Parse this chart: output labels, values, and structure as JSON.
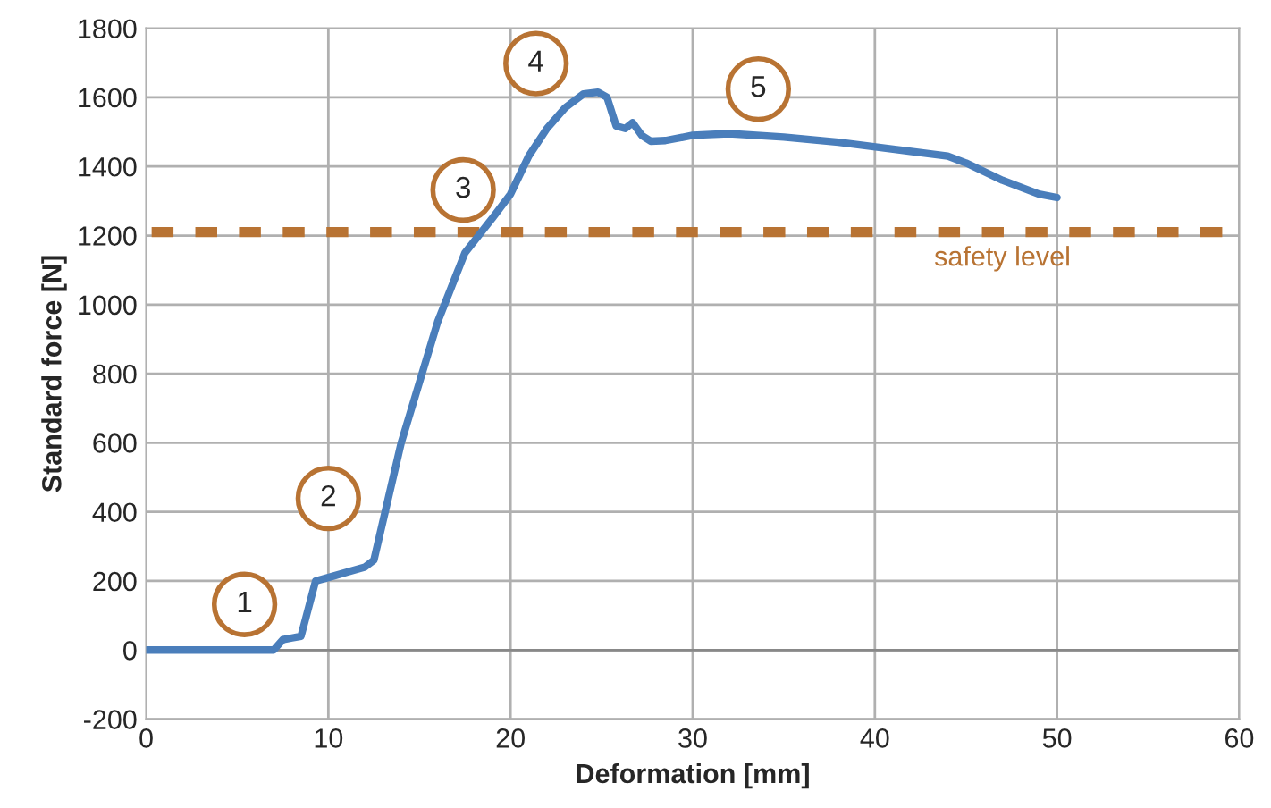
{
  "chart_data": {
    "type": "line",
    "xlabel": "Deformation [mm]",
    "ylabel": "Standard force [N]",
    "series": [
      {
        "color": "#4a7ebb",
        "x": [
          0,
          7,
          7.5,
          8,
          8.5,
          9.3,
          10,
          11,
          12,
          12.5,
          14,
          16,
          17.5,
          19,
          20,
          21,
          22,
          23,
          24,
          24.8,
          25.3,
          25.8,
          26.3,
          26.7,
          27.2,
          27.7,
          28.5,
          30,
          32,
          35,
          38,
          41,
          44,
          45,
          47,
          49,
          50
        ],
        "values": [
          0,
          0,
          30,
          35,
          40,
          200,
          210,
          225,
          240,
          260,
          600,
          950,
          1150,
          1250,
          1320,
          1430,
          1510,
          1570,
          1610,
          1615,
          1600,
          1517,
          1510,
          1527,
          1490,
          1473,
          1475,
          1490,
          1495,
          1485,
          1470,
          1450,
          1430,
          1410,
          1360,
          1320,
          1310
        ]
      }
    ],
    "xlim": [
      0,
      60
    ],
    "xticks": [
      0,
      10,
      20,
      30,
      40,
      50,
      60
    ],
    "ylim": [
      -200,
      1800
    ],
    "yticks": [
      -200,
      0,
      200,
      400,
      600,
      800,
      1000,
      1200,
      1400,
      1600,
      1800
    ],
    "grid": true,
    "line_style": "solid",
    "marker": "none",
    "ref_lines": [
      {
        "axis": "y",
        "value": 1210,
        "label": "safety level",
        "color": "#b87333",
        "line_style": "dashed"
      }
    ],
    "annotations": [
      {
        "text": "1",
        "x": 5.4,
        "y": 132
      },
      {
        "text": "2",
        "x": 10,
        "y": 439
      },
      {
        "text": "3",
        "x": 17.4,
        "y": 1332
      },
      {
        "text": "4",
        "x": 21.4,
        "y": 1698
      },
      {
        "text": "5",
        "x": 33.6,
        "y": 1624
      }
    ]
  }
}
